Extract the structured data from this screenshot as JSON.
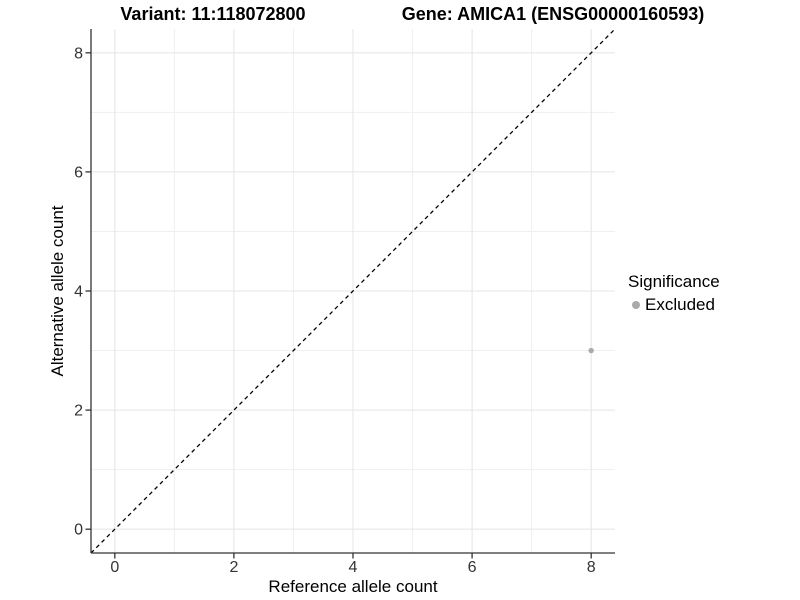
{
  "header": {
    "title_left": "Variant: 11:118072800",
    "title_right": "Gene: AMICA1 (ENSG00000160593)"
  },
  "chart_data": {
    "type": "scatter",
    "title": "Variant: 11:118072800   Gene: AMICA1 (ENSG00000160593)",
    "xlabel": "Reference allele count",
    "ylabel": "Alternative allele count",
    "xlim": [
      -0.4,
      8.4
    ],
    "ylim": [
      -0.4,
      8.4
    ],
    "xticks": [
      0,
      2,
      4,
      6,
      8
    ],
    "yticks": [
      0,
      2,
      4,
      6,
      8
    ],
    "minor_xticks": [
      1,
      3,
      5,
      7
    ],
    "minor_yticks": [
      1,
      3,
      5,
      7
    ],
    "grid": "major and minor gridlines, light gray on white",
    "series": [
      {
        "name": "Excluded",
        "points": [
          {
            "x": 8,
            "y": 3
          }
        ]
      }
    ],
    "reference_line": {
      "type": "abline",
      "slope": 1,
      "intercept": 0,
      "style": "dashed",
      "color": "#000000"
    },
    "legend": {
      "title": "Significance",
      "position": "right",
      "items": [
        {
          "label": "Excluded",
          "color": "#aaaaaa"
        }
      ]
    },
    "colors": {
      "point": "#aaaaaa",
      "grid_major": "#e4e4e4",
      "grid_minor": "#efefef",
      "axis_line": "#333333",
      "tick_label": "#333333"
    }
  }
}
